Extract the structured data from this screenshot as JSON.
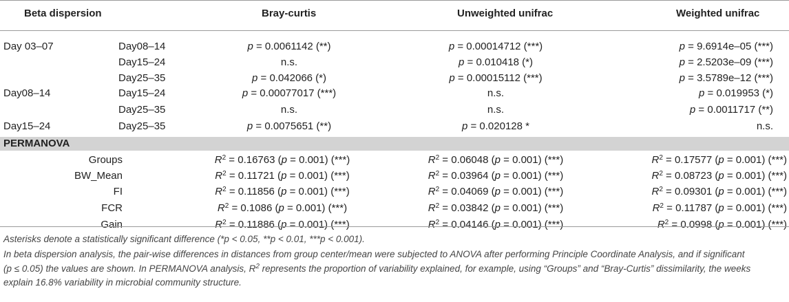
{
  "headers": {
    "beta": "Beta dispersion",
    "bray": "Bray-curtis",
    "unweighted": "Unweighted unifrac",
    "weighted": "Weighted unifrac"
  },
  "beta_rows": [
    {
      "g1": "Day 03–07",
      "g2": "Day08–14",
      "bray": "p = 0.0061142 (**)",
      "unw": "p = 0.00014712 (***)",
      "w": "p = 9.6914e–05 (***)"
    },
    {
      "g1": "",
      "g2": "Day15–24",
      "bray": "n.s.",
      "unw": "p = 0.010418 (*)",
      "w": "p = 2.5203e–09 (***)"
    },
    {
      "g1": "",
      "g2": "Day25–35",
      "bray": "p = 0.042066 (*)",
      "unw": "p = 0.00015112 (***)",
      "w": "p = 3.5789e–12 (***)"
    },
    {
      "g1": "Day08–14",
      "g2": "Day15–24",
      "bray": "p = 0.00077017 (***)",
      "unw": "n.s.",
      "w": "p = 0.019953 (*)"
    },
    {
      "g1": "",
      "g2": "Day25–35",
      "bray": "n.s.",
      "unw": "n.s.",
      "w": "p = 0.0011717 (**)"
    },
    {
      "g1": "Day15–24",
      "g2": "Day25–35",
      "bray": "p = 0.0075651 (**)",
      "unw": "p = 0.020128 *",
      "w": "n.s."
    }
  ],
  "permanova_label": "PERMANOVA",
  "perm_rows": [
    {
      "group": "Groups",
      "bray": "R2 = 0.16763 (p = 0.001) (***)",
      "unw": "R2 = 0.06048 (p = 0.001) (***)",
      "w": "R2 = 0.17577 (p = 0.001) (***)"
    },
    {
      "group": "BW_Mean",
      "bray": "R2 = 0.11721 (p = 0.001) (***)",
      "unw": "R2 = 0.03964 (p = 0.001) (***)",
      "w": "R2 = 0.08723 (p = 0.001) (***)"
    },
    {
      "group": "FI",
      "bray": "R2 = 0.11856 (p = 0.001) (***)",
      "unw": "R2 = 0.04069 (p = 0.001) (***)",
      "w": "R2 = 0.09301 (p = 0.001) (***)"
    },
    {
      "group": "FCR",
      "bray": "R2 = 0.1086 (p = 0.001) (***)",
      "unw": "R2 = 0.03842 (p = 0.001) (***)",
      "w": "R2 = 0.11787 (p = 0.001) (***)"
    },
    {
      "group": "Gain",
      "bray": "R2 = 0.11886 (p = 0.001) (***)",
      "unw": "R2 = 0.04146 (p = 0.001) (***)",
      "w": "R2 = 0.0998 (p = 0.001) (***)"
    }
  ],
  "notes": {
    "asterisks": "Asterisks denote a statistically significant difference (*p < 0.05, **p < 0.01, ***p < 0.001).",
    "method_line1": "In beta dispersion analysis, the pair-wise differences in distances from group center/mean were subjected to ANOVA after performing Principle Coordinate Analysis, and if significant",
    "method_line2": "(p ≤ 0.05) the values are shown. In PERMANOVA analysis, R2 represents the proportion of variability explained, for example, using “Groups” and “Bray-Curtis” dissimilarity, the weeks",
    "method_line3": "explain 16.8% variability in microbial community structure."
  }
}
